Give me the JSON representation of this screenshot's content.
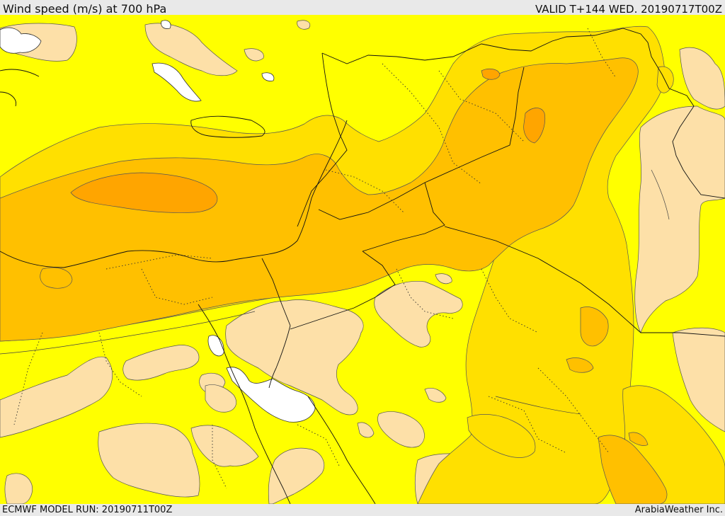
{
  "header": {
    "title": "Wind speed (m/s) at 700 hPa",
    "valid": "VALID T+144 WED. 20190717T00Z"
  },
  "footer": {
    "model_run": "ECMWF MODEL RUN: 20190711T00Z",
    "credit": "ArabiaWeather Inc."
  },
  "map": {
    "parameter": "wind-speed",
    "level": "700 hPa",
    "units": "m/s",
    "shading_colors": {
      "sea_water": "#ffffff",
      "lowest": "#fde0a8",
      "low": "#ffff00",
      "moderate": "#ffe000",
      "high": "#ffc000",
      "very_high": "#ffa500",
      "highest": "#f59100"
    },
    "contour_line_color": "#444444",
    "border_line_color": "#000000"
  }
}
